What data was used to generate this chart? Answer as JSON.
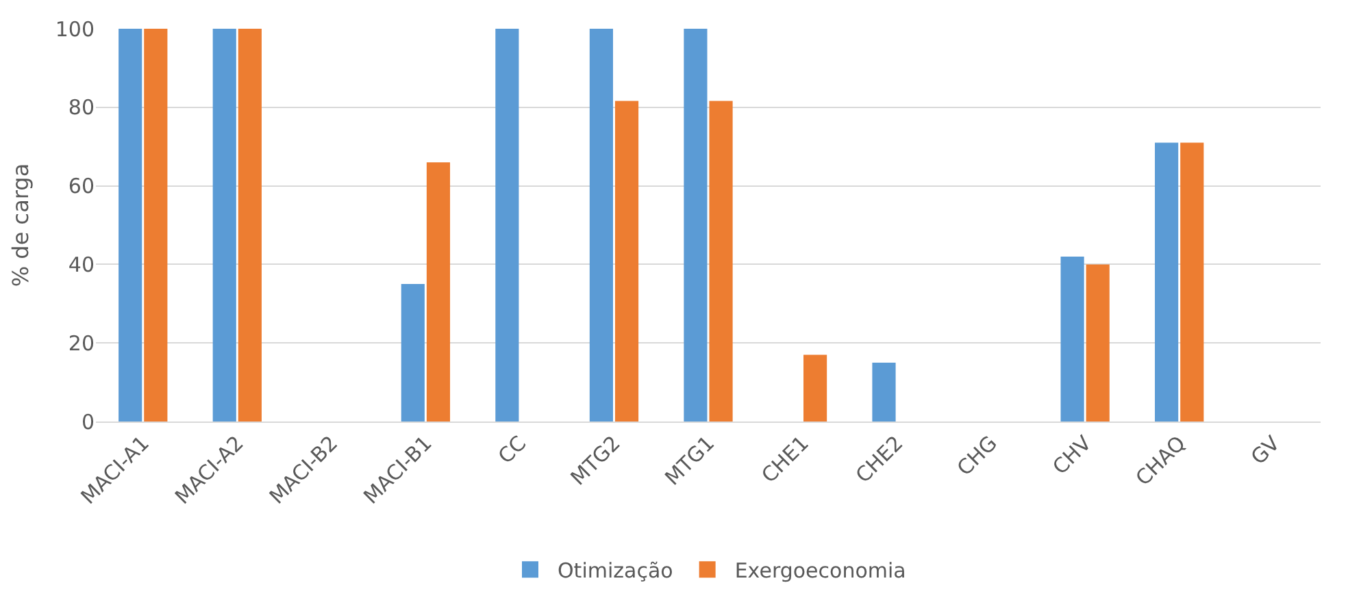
{
  "chart_data": {
    "type": "bar",
    "ylabel": "% de carga",
    "categories": [
      "MACI-A1",
      "MACI-A2",
      "MACI-B2",
      "MACI-B1",
      "CC",
      "MTG2",
      "MTG1",
      "CHE1",
      "CHE2",
      "CHG",
      "CHV",
      "CHAQ",
      "GV"
    ],
    "series": [
      {
        "name": "Otimização",
        "color": "#5b9bd5",
        "values": [
          100,
          100,
          null,
          35,
          100,
          100,
          100,
          null,
          15,
          null,
          42,
          71,
          null
        ]
      },
      {
        "name": "Exergoeconomia",
        "color": "#ed7d31",
        "values": [
          100,
          100,
          null,
          66,
          null,
          81.6,
          81.6,
          17,
          null,
          null,
          40,
          71,
          null
        ]
      }
    ],
    "ylim": [
      0,
      100
    ],
    "yticks": [
      0,
      20,
      40,
      60,
      80,
      100
    ],
    "grid": "y",
    "legend": "bottom"
  }
}
